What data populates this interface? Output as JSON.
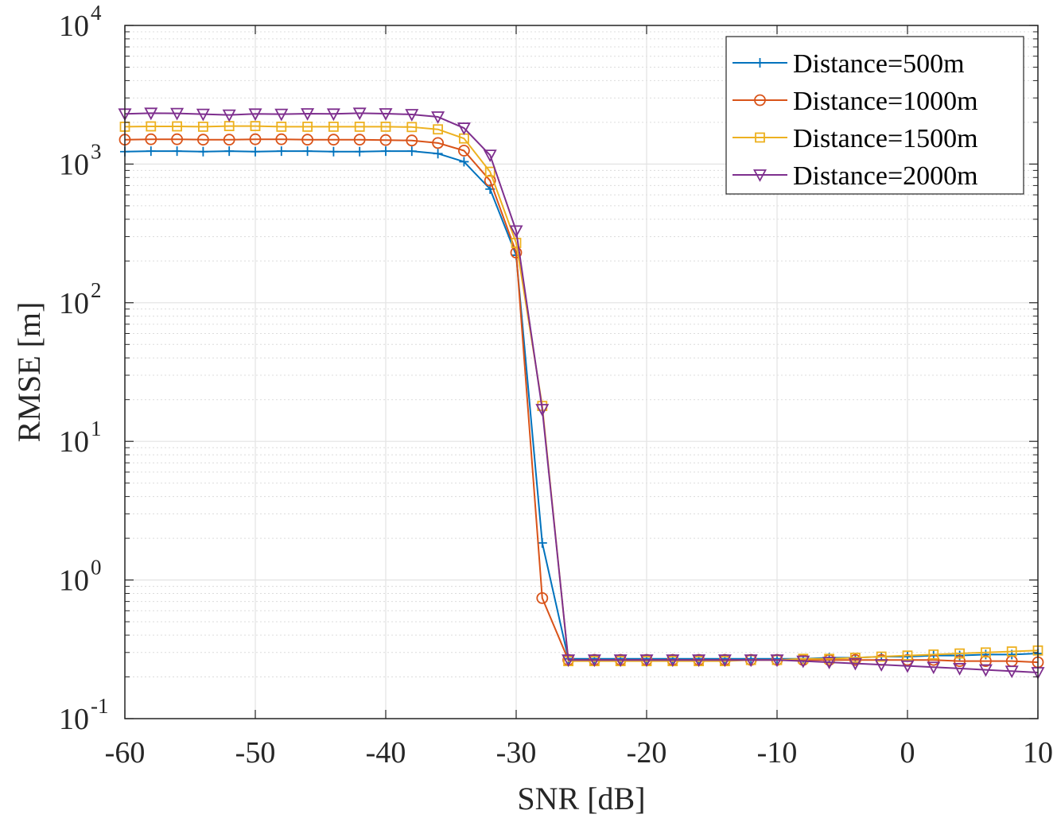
{
  "chart_data": {
    "type": "line",
    "title": "",
    "xlabel": "SNR [dB]",
    "ylabel": "RMSE [m]",
    "yscale": "log",
    "xlim": [
      -60,
      10
    ],
    "ylim": [
      0.1,
      10000
    ],
    "grid": true,
    "minor_grid": true,
    "legend_position": "top-right",
    "x_ticks": [
      -60,
      -50,
      -40,
      -30,
      -20,
      -10,
      0,
      10
    ],
    "x_tick_labels": [
      "-60",
      "-50",
      "-40",
      "-30",
      "-20",
      "-10",
      "0",
      "10"
    ],
    "y_ticks": [
      {
        "value": 0.1,
        "base": "10",
        "exp": "-1"
      },
      {
        "value": 1,
        "base": "10",
        "exp": "0"
      },
      {
        "value": 10,
        "base": "10",
        "exp": "1"
      },
      {
        "value": 100,
        "base": "10",
        "exp": "2"
      },
      {
        "value": 1000,
        "base": "10",
        "exp": "3"
      },
      {
        "value": 10000,
        "base": "10",
        "exp": "4"
      }
    ],
    "x": [
      -60,
      -58,
      -56,
      -54,
      -52,
      -50,
      -48,
      -46,
      -44,
      -42,
      -40,
      -38,
      -36,
      -34,
      -32,
      -30,
      -28,
      -26,
      -24,
      -22,
      -20,
      -18,
      -16,
      -14,
      -12,
      -10,
      -8,
      -6,
      -4,
      -2,
      0,
      2,
      4,
      6,
      8,
      10
    ],
    "series": [
      {
        "name": "Distance=500m",
        "color": "#0072BD",
        "marker": "plus",
        "values": [
          1230,
          1240,
          1240,
          1230,
          1240,
          1230,
          1240,
          1240,
          1230,
          1230,
          1240,
          1240,
          1190,
          1040,
          660,
          220,
          1.85,
          0.27,
          0.27,
          0.27,
          0.27,
          0.27,
          0.27,
          0.27,
          0.27,
          0.27,
          0.27,
          0.275,
          0.275,
          0.28,
          0.28,
          0.285,
          0.285,
          0.29,
          0.29,
          0.295
        ]
      },
      {
        "name": "Distance=1000m",
        "color": "#D95319",
        "marker": "circle",
        "values": [
          1500,
          1510,
          1510,
          1500,
          1500,
          1510,
          1510,
          1500,
          1500,
          1500,
          1490,
          1480,
          1420,
          1250,
          760,
          230,
          0.74,
          0.265,
          0.265,
          0.265,
          0.265,
          0.265,
          0.265,
          0.265,
          0.265,
          0.265,
          0.265,
          0.265,
          0.265,
          0.265,
          0.265,
          0.265,
          0.26,
          0.26,
          0.26,
          0.255
        ]
      },
      {
        "name": "Distance=1500m",
        "color": "#EDB120",
        "marker": "square",
        "values": [
          1860,
          1870,
          1870,
          1860,
          1880,
          1880,
          1860,
          1860,
          1860,
          1860,
          1860,
          1850,
          1780,
          1530,
          880,
          270,
          18,
          0.26,
          0.26,
          0.26,
          0.26,
          0.26,
          0.26,
          0.26,
          0.265,
          0.265,
          0.27,
          0.27,
          0.275,
          0.28,
          0.285,
          0.29,
          0.295,
          0.3,
          0.305,
          0.31
        ]
      },
      {
        "name": "Distance=2000m",
        "color": "#7E2F8E",
        "marker": "triangle-down",
        "values": [
          2300,
          2330,
          2320,
          2290,
          2260,
          2300,
          2290,
          2310,
          2300,
          2330,
          2310,
          2280,
          2190,
          1820,
          1160,
          330,
          17,
          0.265,
          0.265,
          0.265,
          0.265,
          0.265,
          0.265,
          0.265,
          0.265,
          0.265,
          0.26,
          0.255,
          0.25,
          0.245,
          0.24,
          0.235,
          0.23,
          0.225,
          0.22,
          0.215
        ]
      }
    ]
  }
}
